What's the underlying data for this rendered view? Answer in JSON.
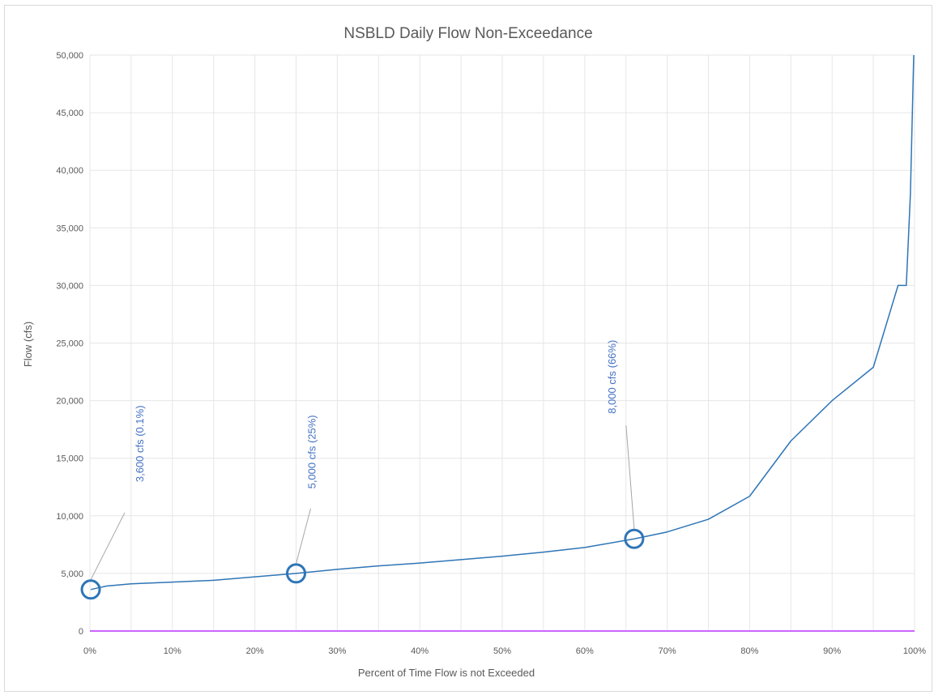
{
  "chart_data": {
    "type": "line",
    "title": "NSBLD Daily Flow Non-Exceedance",
    "xlabel": "Percent of Time Flow is not Exceeded",
    "ylabel": "Flow (cfs)",
    "xlim": [
      0,
      100
    ],
    "ylim": [
      0,
      50000
    ],
    "x_ticks": [
      "0%",
      "10%",
      "20%",
      "30%",
      "40%",
      "50%",
      "60%",
      "70%",
      "80%",
      "90%",
      "100%"
    ],
    "y_ticks": [
      "0",
      "5,000",
      "10,000",
      "15,000",
      "20,000",
      "25,000",
      "30,000",
      "35,000",
      "40,000",
      "45,000",
      "50,000"
    ],
    "grid": true,
    "legend": "none",
    "colors": {
      "series": "#2e75b6",
      "baseline": "#cc66ff",
      "annotation": "#4472c4",
      "grid": "#e6e6e6"
    },
    "series": [
      {
        "x": [
          0.1,
          2,
          5,
          10,
          15,
          20,
          25,
          30,
          35,
          40,
          45,
          50,
          55,
          60,
          66,
          70,
          75,
          80,
          85,
          90,
          95,
          98,
          99,
          99.5,
          99.9
        ],
        "y": [
          3600,
          3900,
          4100,
          4250,
          4400,
          4700,
          5000,
          5350,
          5650,
          5900,
          6200,
          6500,
          6850,
          7250,
          8000,
          8600,
          9700,
          11700,
          16500,
          20000,
          22900,
          30000,
          30000,
          38000,
          50000
        ]
      },
      {
        "x": [
          0,
          100
        ],
        "y": [
          0,
          0
        ]
      }
    ],
    "annotations": [
      {
        "text": "3,600 cfs (0.1%)",
        "x": 0.1,
        "y": 3600
      },
      {
        "text": "5,000 cfs (25%)",
        "x": 25,
        "y": 5000
      },
      {
        "text": "8,000 cfs (66%)",
        "x": 66,
        "y": 8000
      }
    ]
  }
}
